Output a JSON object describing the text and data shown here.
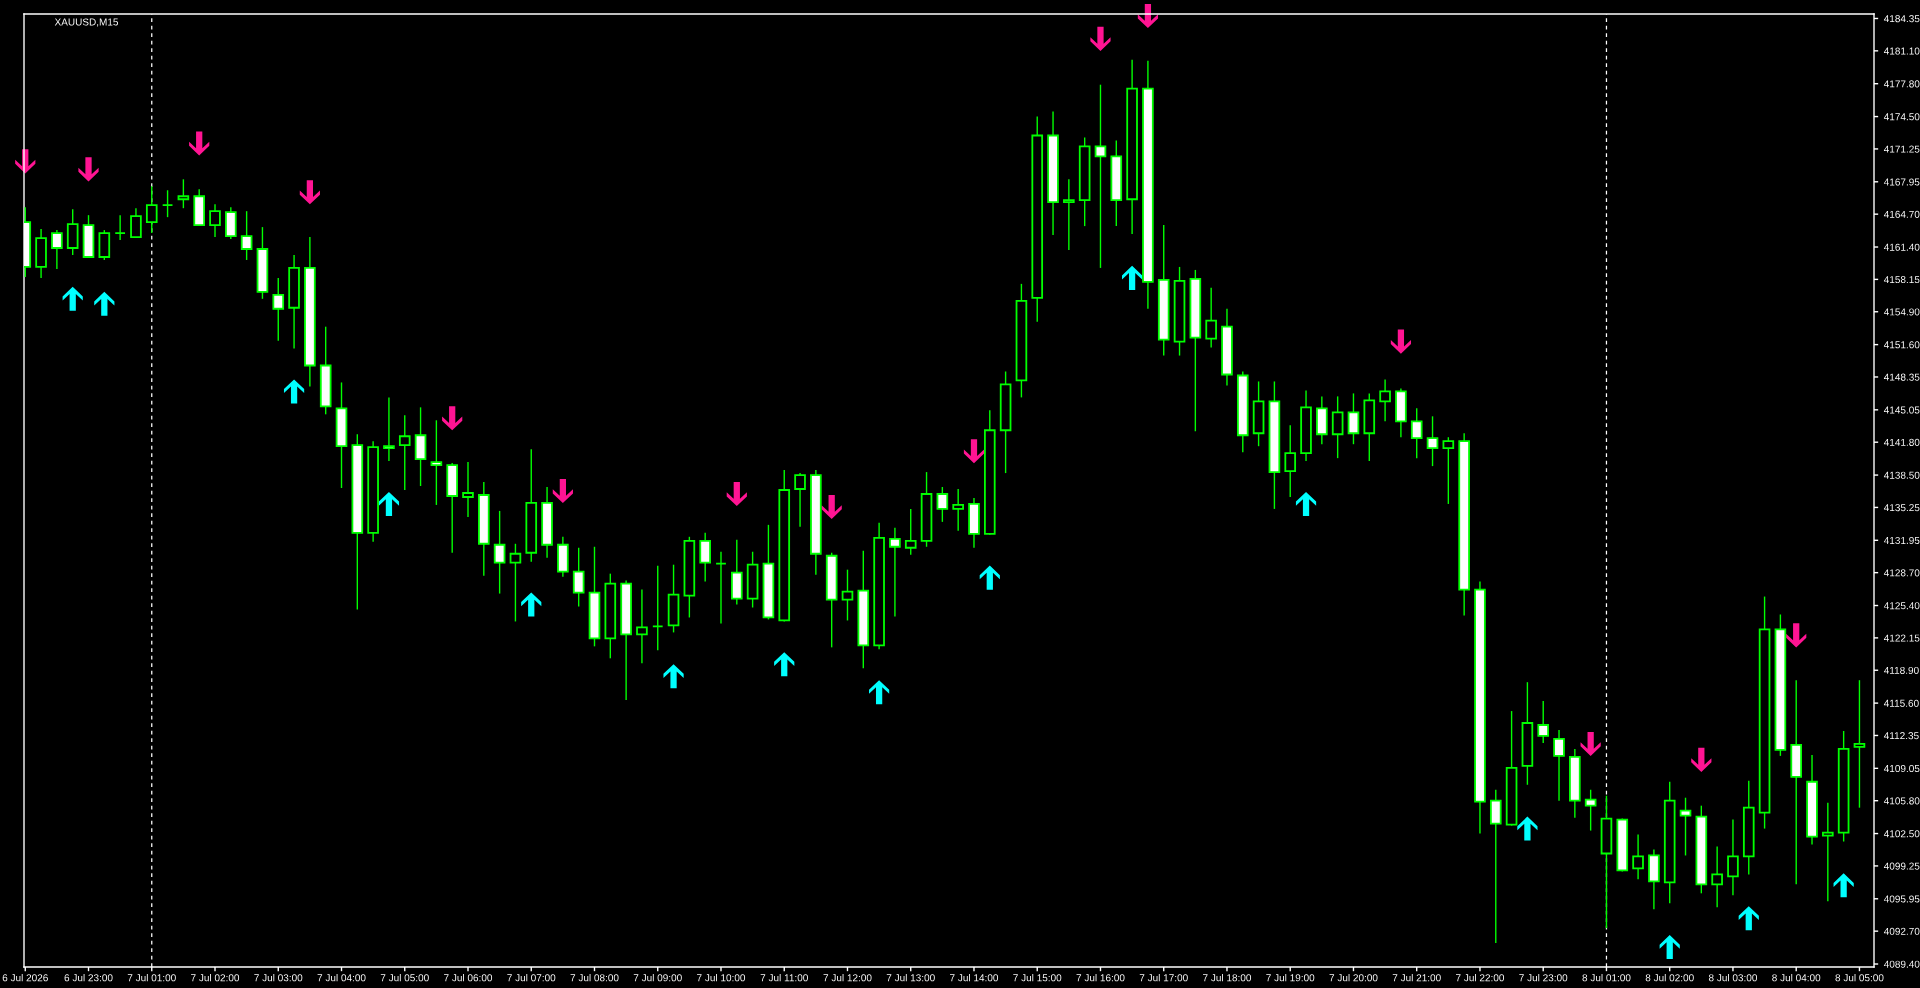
{
  "chart_data": {
    "type": "candlestick",
    "title": "XAUUSD,M15",
    "categories": [
      "6 Jul 2026",
      null,
      null,
      null,
      "6 Jul 23:00",
      null,
      null,
      null,
      "7 Jul 01:00",
      null,
      null,
      null,
      "7 Jul 02:00",
      null,
      null,
      null,
      "7 Jul 03:00",
      null,
      null,
      null,
      "7 Jul 04:00",
      null,
      null,
      null,
      "7 Jul 05:00",
      null,
      null,
      null,
      "7 Jul 06:00",
      null,
      null,
      null,
      "7 Jul 07:00",
      null,
      null,
      null,
      "7 Jul 08:00",
      null,
      null,
      null,
      "7 Jul 09:00",
      null,
      null,
      null,
      "7 Jul 10:00",
      null,
      null,
      null,
      "7 Jul 11:00",
      null,
      null,
      null,
      "7 Jul 12:00",
      null,
      null,
      null,
      "7 Jul 13:00",
      null,
      null,
      null,
      "7 Jul 14:00",
      null,
      null,
      null,
      "7 Jul 15:00",
      null,
      null,
      null,
      "7 Jul 16:00",
      null,
      null,
      null,
      "7 Jul 17:00",
      null,
      null,
      null,
      "7 Jul 18:00",
      null,
      null,
      null,
      "7 Jul 19:00",
      null,
      null,
      null,
      "7 Jul 20:00",
      null,
      null,
      null,
      "7 Jul 21:00",
      null,
      null,
      null,
      "7 Jul 22:00",
      null,
      null,
      null,
      "7 Jul 23:00",
      null,
      null,
      null,
      "8 Jul 01:00",
      null,
      null,
      null,
      "8 Jul 02:00",
      null,
      null,
      null,
      "8 Jul 03:00",
      null,
      null,
      null,
      "8 Jul 04:00",
      null,
      null,
      null,
      "8 Jul 05:00"
    ],
    "ohlc": [
      [
        4163.9,
        4165.4,
        4158.4,
        4159.4
      ],
      [
        4159.4,
        4163.2,
        4158.3,
        4162.3
      ],
      [
        4162.8,
        4163.1,
        4159.2,
        4161.3
      ],
      [
        4161.3,
        4165.2,
        4160.6,
        4163.7
      ],
      [
        4163.6,
        4164.6,
        4160.3,
        4160.4
      ],
      [
        4160.4,
        4163.1,
        4160.1,
        4162.8
      ],
      [
        4162.8,
        4164.6,
        4162.1,
        4162.8
      ],
      [
        4162.4,
        4165.3,
        4162.3,
        4164.5
      ],
      [
        4163.9,
        4167.5,
        4162.8,
        4165.6
      ],
      [
        4165.6,
        4167.1,
        4164.4,
        4165.6
      ],
      [
        4166.2,
        4168.2,
        4165.3,
        4166.5
      ],
      [
        4166.5,
        4167.2,
        4163.5,
        4163.6
      ],
      [
        4163.6,
        4165.7,
        4162.4,
        4165.0
      ],
      [
        4164.9,
        4165.4,
        4162.2,
        4162.5
      ],
      [
        4162.5,
        4165.0,
        4160.1,
        4161.2
      ],
      [
        4161.2,
        4163.4,
        4156.2,
        4156.9
      ],
      [
        4156.6,
        4158.3,
        4152.0,
        4155.2
      ],
      [
        4155.3,
        4160.6,
        4151.2,
        4159.3
      ],
      [
        4159.3,
        4162.4,
        4147.4,
        4149.5
      ],
      [
        4149.5,
        4153.4,
        4144.6,
        4145.4
      ],
      [
        4145.2,
        4147.8,
        4137.2,
        4141.4
      ],
      [
        4141.5,
        4142.6,
        4125.0,
        4132.7
      ],
      [
        4132.7,
        4141.9,
        4131.8,
        4141.3
      ],
      [
        4141.4,
        4146.3,
        4139.9,
        4141.2
      ],
      [
        4141.5,
        4144.5,
        4137.0,
        4142.4
      ],
      [
        4142.5,
        4145.3,
        4137.4,
        4140.1
      ],
      [
        4139.8,
        4144.0,
        4135.5,
        4139.5
      ],
      [
        4139.5,
        4139.7,
        4130.7,
        4136.4
      ],
      [
        4136.3,
        4139.8,
        4134.3,
        4136.7
      ],
      [
        4136.5,
        4137.8,
        4128.4,
        4131.6
      ],
      [
        4131.5,
        4134.9,
        4126.6,
        4129.7
      ],
      [
        4129.7,
        4131.6,
        4123.8,
        4130.6
      ],
      [
        4130.7,
        4141.1,
        4129.8,
        4135.7
      ],
      [
        4135.7,
        4137.3,
        4130.2,
        4131.5
      ],
      [
        4131.5,
        4132.3,
        4128.3,
        4128.8
      ],
      [
        4128.8,
        4131.2,
        4125.3,
        4126.7
      ],
      [
        4126.7,
        4131.3,
        4121.3,
        4122.1
      ],
      [
        4122.1,
        4128.6,
        4120.1,
        4127.6
      ],
      [
        4127.6,
        4127.9,
        4115.9,
        4122.5
      ],
      [
        4122.5,
        4127.0,
        4119.6,
        4123.2
      ],
      [
        4123.3,
        4129.4,
        4120.9,
        4123.3
      ],
      [
        4123.4,
        4129.5,
        4122.7,
        4126.5
      ],
      [
        4126.4,
        4132.3,
        4124.2,
        4131.9
      ],
      [
        4131.9,
        4132.7,
        4127.8,
        4129.7
      ],
      [
        4129.6,
        4130.8,
        4123.6,
        4129.6
      ],
      [
        4128.7,
        4132.0,
        4125.5,
        4126.1
      ],
      [
        4126.1,
        4130.8,
        4125.2,
        4129.5
      ],
      [
        4129.6,
        4133.5,
        4124.0,
        4124.2
      ],
      [
        4123.9,
        4139.0,
        4123.8,
        4137.0
      ],
      [
        4137.1,
        4138.7,
        4133.3,
        4138.5
      ],
      [
        4138.5,
        4139.0,
        4128.5,
        4130.6
      ],
      [
        4130.4,
        4130.7,
        4121.2,
        4126.0
      ],
      [
        4126.0,
        4129.0,
        4123.9,
        4126.8
      ],
      [
        4126.9,
        4130.9,
        4119.1,
        4121.4
      ],
      [
        4121.4,
        4133.7,
        4121.0,
        4132.2
      ],
      [
        4132.1,
        4133.2,
        4124.3,
        4131.3
      ],
      [
        4131.2,
        4135.1,
        4130.5,
        4131.9
      ],
      [
        4131.9,
        4138.8,
        4131.3,
        4136.6
      ],
      [
        4136.6,
        4137.3,
        4133.8,
        4135.1
      ],
      [
        4135.1,
        4137.1,
        4132.9,
        4135.5
      ],
      [
        4135.6,
        4136.2,
        4131.2,
        4132.6
      ],
      [
        4132.6,
        4145.0,
        4132.5,
        4143.0
      ],
      [
        4143.0,
        4148.9,
        4138.7,
        4147.6
      ],
      [
        4148.0,
        4157.7,
        4146.3,
        4156.0
      ],
      [
        4156.3,
        4174.5,
        4153.9,
        4172.6
      ],
      [
        4172.6,
        4175.0,
        4162.6,
        4165.9
      ],
      [
        4165.9,
        4168.2,
        4161.1,
        4166.1
      ],
      [
        4166.1,
        4172.4,
        4163.5,
        4171.5
      ],
      [
        4171.5,
        4177.7,
        4159.3,
        4170.5
      ],
      [
        4170.5,
        4172.1,
        4163.5,
        4166.1
      ],
      [
        4166.2,
        4180.2,
        4162.7,
        4177.3
      ],
      [
        4177.3,
        4180.1,
        4155.2,
        4157.9
      ],
      [
        4158.1,
        4163.6,
        4150.5,
        4152.1
      ],
      [
        4151.9,
        4159.4,
        4150.5,
        4158.0
      ],
      [
        4158.2,
        4159.1,
        4142.9,
        4152.3
      ],
      [
        4152.2,
        4157.3,
        4151.3,
        4154.0
      ],
      [
        4153.4,
        4155.2,
        4147.5,
        4148.6
      ],
      [
        4148.5,
        4148.9,
        4140.8,
        4142.5
      ],
      [
        4142.7,
        4147.9,
        4141.4,
        4145.9
      ],
      [
        4145.9,
        4147.9,
        4135.1,
        4138.8
      ],
      [
        4138.9,
        4143.5,
        4136.3,
        4140.7
      ],
      [
        4140.7,
        4147.0,
        4139.9,
        4145.3
      ],
      [
        4145.2,
        4146.4,
        4141.6,
        4142.6
      ],
      [
        4142.6,
        4146.4,
        4140.2,
        4144.8
      ],
      [
        4144.8,
        4146.7,
        4141.6,
        4142.7
      ],
      [
        4142.7,
        4146.7,
        4139.9,
        4146.0
      ],
      [
        4145.9,
        4148.1,
        4143.9,
        4146.9
      ],
      [
        4146.9,
        4147.2,
        4142.3,
        4143.9
      ],
      [
        4143.9,
        4145.2,
        4140.2,
        4142.2
      ],
      [
        4142.2,
        4144.4,
        4139.4,
        4141.2
      ],
      [
        4141.2,
        4142.3,
        4135.6,
        4141.9
      ],
      [
        4141.9,
        4142.7,
        4124.4,
        4127.0
      ],
      [
        4127.0,
        4127.8,
        4102.5,
        4105.7
      ],
      [
        4105.8,
        4106.9,
        4091.5,
        4103.5
      ],
      [
        4103.4,
        4114.8,
        4103.3,
        4109.1
      ],
      [
        4109.3,
        4117.7,
        4107.4,
        4113.6
      ],
      [
        4113.4,
        4115.8,
        4111.6,
        4112.3
      ],
      [
        4112.0,
        4112.9,
        4105.8,
        4110.3
      ],
      [
        4110.2,
        4111.0,
        4104.1,
        4105.8
      ],
      [
        4105.9,
        4106.9,
        4102.8,
        4105.3
      ],
      [
        4100.5,
        4106.3,
        4093.0,
        4104.0
      ],
      [
        4103.9,
        4104.0,
        4098.7,
        4098.8
      ],
      [
        4099.0,
        4102.4,
        4097.9,
        4100.2
      ],
      [
        4100.3,
        4100.9,
        4094.9,
        4097.7
      ],
      [
        4097.6,
        4107.7,
        4095.5,
        4105.8
      ],
      [
        4104.8,
        4106.1,
        4100.3,
        4104.3
      ],
      [
        4104.2,
        4105.3,
        4096.5,
        4097.4
      ],
      [
        4097.4,
        4101.2,
        4095.1,
        4098.4
      ],
      [
        4098.2,
        4103.9,
        4096.3,
        4100.2
      ],
      [
        4100.2,
        4107.8,
        4098.4,
        4105.1
      ],
      [
        4104.6,
        4126.3,
        4103.0,
        4123.0
      ],
      [
        4123.0,
        4124.5,
        4110.3,
        4110.9
      ],
      [
        4111.4,
        4117.9,
        4097.4,
        4108.2
      ],
      [
        4107.7,
        4110.4,
        4101.4,
        4102.2
      ],
      [
        4102.3,
        4105.6,
        4095.7,
        4102.6
      ],
      [
        4102.6,
        4112.8,
        4101.7,
        4111.0
      ],
      [
        4111.2,
        4117.9,
        4105.1,
        4111.5
      ]
    ],
    "color": "#00ff00",
    "colors": [
      "#ffffff",
      "#000000",
      "#ffffff",
      "#000000",
      "#ffffff",
      "#000000",
      "#00ff00",
      "#000000",
      "#000000",
      "#00ff00",
      "#000000",
      "#ffffff",
      "#000000",
      "#ffffff",
      "#ffffff",
      "#ffffff",
      "#ffffff",
      "#000000",
      "#ffffff",
      "#ffffff",
      "#ffffff",
      "#ffffff",
      "#000000",
      "#ffffff",
      "#000000",
      "#ffffff",
      "#ffffff",
      "#ffffff",
      "#000000",
      "#ffffff",
      "#ffffff",
      "#000000",
      "#000000",
      "#ffffff",
      "#ffffff",
      "#ffffff",
      "#ffffff",
      "#000000",
      "#ffffff",
      "#000000",
      "#00ff00",
      "#000000",
      "#000000",
      "#ffffff",
      "#00ff00",
      "#ffffff",
      "#000000",
      "#ffffff",
      "#000000",
      "#000000",
      "#ffffff",
      "#ffffff",
      "#000000",
      "#ffffff",
      "#000000",
      "#ffffff",
      "#000000",
      "#000000",
      "#ffffff",
      "#000000",
      "#ffffff",
      "#000000",
      "#000000",
      "#000000",
      "#000000",
      "#ffffff",
      "#000000",
      "#000000",
      "#ffffff",
      "#ffffff",
      "#000000",
      "#ffffff",
      "#ffffff",
      "#000000",
      "#ffffff",
      "#000000",
      "#ffffff",
      "#ffffff",
      "#000000",
      "#ffffff",
      "#000000",
      "#000000",
      "#ffffff",
      "#000000",
      "#ffffff",
      "#000000",
      "#000000",
      "#ffffff",
      "#ffffff",
      "#ffffff",
      "#000000",
      "#ffffff",
      "#ffffff",
      "#ffffff",
      "#000000",
      "#000000",
      "#ffffff",
      "#ffffff",
      "#ffffff",
      "#ffffff",
      "#000000",
      "#ffffff",
      "#000000",
      "#ffffff",
      "#000000",
      "#ffffff",
      "#ffffff",
      "#000000",
      "#000000",
      "#000000",
      "#000000",
      "#ffffff",
      "#ffffff",
      "#ffffff",
      "#000000",
      "#000000",
      "#000000"
    ],
    "marker": "triangle",
    "series": [
      {
        "type": "scatter",
        "color": "#00ffff",
        "values": [
          null,
          null,
          null,
          4156.2,
          null,
          4155.7,
          null,
          null,
          null,
          null,
          null,
          null,
          null,
          null,
          null,
          null,
          null,
          4146.9,
          null,
          null,
          null,
          null,
          null,
          4135.6,
          null,
          null,
          null,
          null,
          null,
          null,
          null,
          null,
          4125.5,
          null,
          null,
          null,
          null,
          null,
          null,
          null,
          null,
          4118.3,
          null,
          null,
          null,
          null,
          null,
          null,
          4119.5,
          null,
          null,
          null,
          null,
          null,
          4116.7,
          null,
          null,
          null,
          null,
          null,
          null,
          4128.2,
          null,
          null,
          null,
          null,
          null,
          null,
          null,
          null,
          4158.3,
          null,
          null,
          null,
          null,
          null,
          null,
          null,
          null,
          null,
          null,
          4135.6,
          null,
          null,
          null,
          null,
          null,
          null,
          null,
          null,
          null,
          null,
          null,
          null,
          null,
          4103.0,
          null,
          null,
          null,
          null,
          null,
          null,
          null,
          null,
          4091.1,
          null,
          null,
          null,
          null,
          4094.0,
          null,
          null,
          null,
          null,
          null,
          4097.3,
          null
        ]
      },
      {
        "type": "scatter",
        "color": "#ff1493",
        "values": [
          4170.0,
          null,
          null,
          null,
          4169.2,
          null,
          null,
          null,
          null,
          null,
          null,
          4171.8,
          null,
          null,
          null,
          null,
          null,
          null,
          4166.9,
          null,
          null,
          null,
          null,
          null,
          null,
          null,
          null,
          4144.2,
          null,
          null,
          null,
          null,
          null,
          null,
          4136.9,
          null,
          null,
          null,
          null,
          null,
          null,
          null,
          null,
          null,
          null,
          4136.6,
          null,
          null,
          null,
          null,
          null,
          4135.3,
          null,
          null,
          null,
          null,
          null,
          null,
          null,
          null,
          4140.9,
          null,
          null,
          null,
          null,
          null,
          null,
          null,
          4182.3,
          null,
          null,
          4184.6,
          null,
          null,
          null,
          null,
          null,
          null,
          null,
          null,
          null,
          null,
          null,
          null,
          null,
          null,
          null,
          4151.9,
          null,
          null,
          null,
          null,
          null,
          null,
          null,
          null,
          null,
          null,
          null,
          4111.5,
          null,
          null,
          null,
          null,
          null,
          null,
          4109.9,
          null,
          null,
          null,
          null,
          null,
          4122.4,
          null,
          null,
          null,
          null
        ]
      }
    ],
    "ylim": [
      4089.1,
      4184.8
    ],
    "yticks": [
      4184.35,
      {
        "value": 4181.1,
        "label": "4181.10"
      },
      {
        "value": 4177.8,
        "label": "4177.80"
      },
      {
        "value": 4174.5,
        "label": "4174.50"
      },
      4171.25,
      4167.95,
      {
        "value": 4164.7,
        "label": "4164.70"
      },
      {
        "value": 4161.4,
        "label": "4161.40"
      },
      4158.15,
      {
        "value": 4154.9,
        "label": "4154.90"
      },
      {
        "value": 4151.6,
        "label": "4151.60"
      },
      4148.35,
      4145.05,
      {
        "value": 4141.8,
        "label": "4141.80"
      },
      {
        "value": 4138.5,
        "label": "4138.50"
      },
      4135.25,
      4131.95,
      {
        "value": 4128.7,
        "label": "4128.70"
      },
      {
        "value": 4125.4,
        "label": "4125.40"
      },
      4122.15,
      {
        "value": 4118.9,
        "label": "4118.90"
      },
      {
        "value": 4115.6,
        "label": "4115.60"
      },
      4112.35,
      4109.05,
      {
        "value": 4105.8,
        "label": "4105.80"
      },
      {
        "value": 4102.5,
        "label": "4102.50"
      },
      4099.25,
      4095.95,
      {
        "value": 4092.7,
        "label": "4092.70"
      },
      {
        "value": 4089.4,
        "label": "4089.40"
      }
    ],
    "ref_lines": [
      {
        "axis": "x",
        "value": "7 Jul 01:00",
        "color": "#ffffff",
        "line_style": "dashed"
      },
      {
        "axis": "x",
        "value": "8 Jul 01:00",
        "color": "#ffffff",
        "line_style": "dashed"
      }
    ]
  }
}
